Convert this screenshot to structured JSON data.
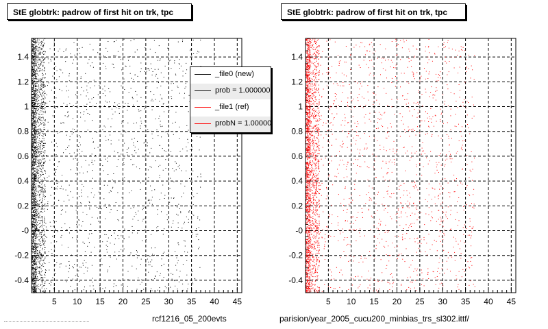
{
  "colors": {
    "new": "#000000",
    "ref": "#ff0000",
    "grid": "#000000"
  },
  "panels": [
    {
      "title": "StE globtrk: padrow of first hit on trk, tpc",
      "xtitle": "rcf1216_05_200evts",
      "legend": [
        {
          "label": "_file0 (new)",
          "color": "#000000"
        },
        {
          "label": "prob = 1.000000",
          "color": "#000000"
        },
        {
          "label": "_file1 (ref)",
          "color": "#ff0000"
        },
        {
          "label": "probN = 1.000000",
          "color": "#ff0000"
        }
      ]
    },
    {
      "title": "StE globtrk: padrow of first hit on trk, tpc",
      "xtitle": "parision/year_2005_cucu200_minbias_trs_sl302.ittf/"
    }
  ],
  "chart_data": [
    {
      "type": "scatter",
      "title": "StE globtrk: padrow of first hit on trk, tpc",
      "xlabel": "rcf1216_05_200evts",
      "xlim": [
        0,
        46
      ],
      "ylim": [
        -0.5,
        1.5
      ],
      "xticks": [
        5,
        10,
        15,
        20,
        25,
        30,
        35,
        40,
        45
      ],
      "yticks": [
        -0.4,
        -0.2,
        0,
        0.2,
        0.4,
        0.6,
        0.8,
        1,
        1.2,
        1.4
      ],
      "ytick_labels": [
        "-0.4",
        "-0.2",
        "-0",
        "0.2",
        "0.4",
        "0.6",
        "0.8",
        "1",
        "1.2",
        "1.4"
      ],
      "grid": true,
      "legend_position": "top-right",
      "series": [
        {
          "name": "_file0 (new)",
          "color": "#000000",
          "description_density": [
            {
              "x_range": [
                0,
                1
              ],
              "weight": 0.45
            },
            {
              "x_range": [
                1,
                3
              ],
              "weight": 0.25
            },
            {
              "x_range": [
                3,
                37
              ],
              "weight": 0.3
            }
          ]
        }
      ]
    },
    {
      "type": "scatter",
      "title": "StE globtrk: padrow of first hit on trk, tpc",
      "xlabel": "parision/year_2005_cucu200_minbias_trs_sl302.ittf/",
      "xlim": [
        0,
        46
      ],
      "ylim": [
        -0.5,
        1.5
      ],
      "xticks": [
        5,
        10,
        15,
        20,
        25,
        30,
        35,
        40,
        45
      ],
      "yticks": [
        -0.4,
        -0.2,
        0,
        0.2,
        0.4,
        0.6,
        0.8,
        1,
        1.2,
        1.4
      ],
      "ytick_labels": [
        "-0.4",
        "-0.2",
        "-0",
        "0.2",
        "0.4",
        "0.6",
        "0.8",
        "1",
        "1.2",
        "1.4"
      ],
      "grid": true,
      "series": [
        {
          "name": "_file1 (ref)",
          "color": "#ff0000",
          "description_density": [
            {
              "x_range": [
                0,
                1
              ],
              "weight": 0.4
            },
            {
              "x_range": [
                1,
                3
              ],
              "weight": 0.25
            },
            {
              "x_range": [
                3,
                37
              ],
              "weight": 0.35
            }
          ]
        }
      ]
    }
  ]
}
